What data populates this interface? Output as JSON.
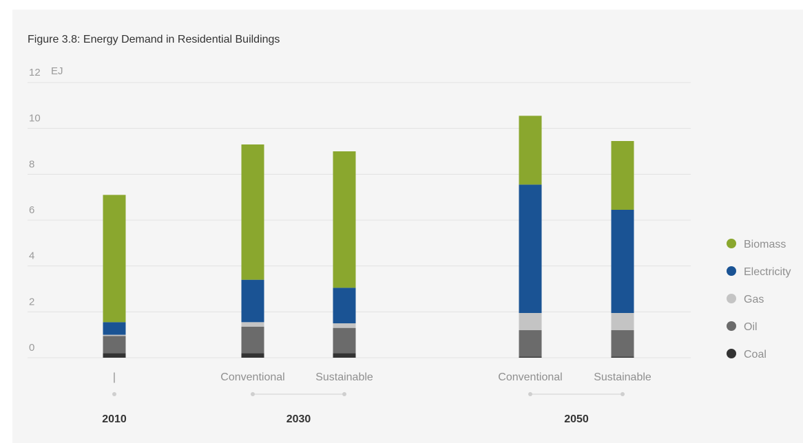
{
  "chart_data": {
    "type": "bar",
    "stacked": true,
    "title": "Figure 3.8: Energy Demand in Residential Buildings",
    "ylabel": "EJ",
    "ylim": [
      0,
      12
    ],
    "yticks": [
      "0",
      "2",
      "4",
      "6",
      "8",
      "10",
      "12"
    ],
    "grid": true,
    "legend_position": "right",
    "groups": [
      "2010",
      "2030",
      "2050"
    ],
    "categories": [
      "|",
      "Conventional",
      "Sustainable",
      "Conventional",
      "Sustainable"
    ],
    "category_group": [
      "2010",
      "2030",
      "2030",
      "2050",
      "2050"
    ],
    "series": [
      {
        "name": "Coal",
        "color": "#333333",
        "values": [
          0.2,
          0.2,
          0.2,
          0.05,
          0.05
        ]
      },
      {
        "name": "Oil",
        "color": "#6b6b6b",
        "values": [
          0.75,
          1.15,
          1.1,
          1.15,
          1.15
        ]
      },
      {
        "name": "Gas",
        "color": "#c4c4c4",
        "values": [
          0.05,
          0.2,
          0.2,
          0.75,
          0.75
        ]
      },
      {
        "name": "Electricity",
        "color": "#1a5394",
        "values": [
          0.55,
          1.85,
          1.55,
          5.6,
          4.5
        ]
      },
      {
        "name": "Biomass",
        "color": "#8aa72e",
        "values": [
          5.55,
          5.9,
          5.95,
          3.0,
          3.0
        ]
      }
    ]
  }
}
